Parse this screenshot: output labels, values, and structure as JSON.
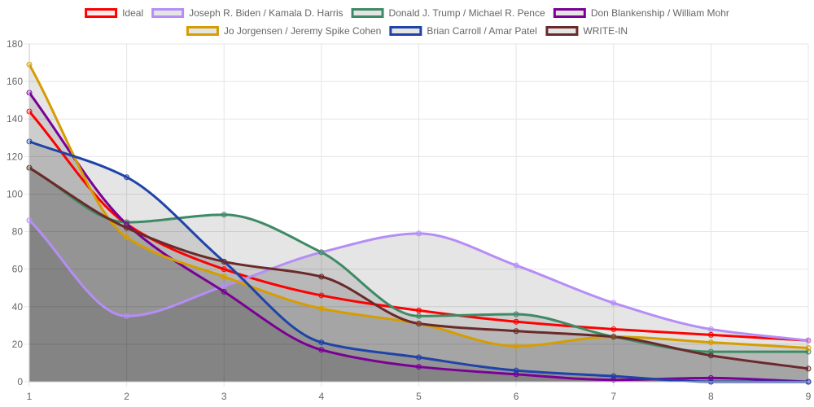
{
  "chart_data": {
    "type": "line",
    "x": [
      1,
      2,
      3,
      4,
      5,
      6,
      7,
      8,
      9
    ],
    "xlim": [
      1,
      9
    ],
    "ylim": [
      0,
      180
    ],
    "yticks": [
      0,
      20,
      40,
      60,
      80,
      100,
      120,
      140,
      160,
      180
    ],
    "grid": true,
    "legend_position": "top",
    "series": [
      {
        "name": "Ideal",
        "color": "#ff0000",
        "fill": false,
        "values": [
          144,
          84,
          60,
          46,
          38,
          32,
          28,
          25,
          22
        ]
      },
      {
        "name": "Joseph R. Biden / Kamala D. Harris",
        "color": "#b58ef5",
        "fill": true,
        "values": [
          86,
          35,
          51,
          69,
          79,
          62,
          42,
          28,
          22
        ]
      },
      {
        "name": "Donald J. Trump / Michael R. Pence",
        "color": "#3f8a66",
        "fill": true,
        "values": [
          114,
          85,
          89,
          69,
          35,
          36,
          24,
          16,
          16
        ]
      },
      {
        "name": "Don Blankenship / William Mohr",
        "color": "#7a0096",
        "fill": true,
        "values": [
          154,
          84,
          48,
          17,
          8,
          4,
          1,
          2,
          0
        ]
      },
      {
        "name": "Jo Jorgensen / Jeremy Spike Cohen",
        "color": "#d69d00",
        "fill": true,
        "values": [
          169,
          77,
          56,
          39,
          31,
          19,
          24,
          21,
          18
        ]
      },
      {
        "name": "Brian Carroll / Amar Patel",
        "color": "#1f43a8",
        "fill": true,
        "values": [
          128,
          109,
          64,
          21,
          13,
          6,
          3,
          0,
          0
        ]
      },
      {
        "name": "WRITE-IN",
        "color": "#6b2a2a",
        "fill": true,
        "values": [
          114,
          82,
          64,
          56,
          31,
          27,
          24,
          14,
          7
        ]
      }
    ]
  }
}
